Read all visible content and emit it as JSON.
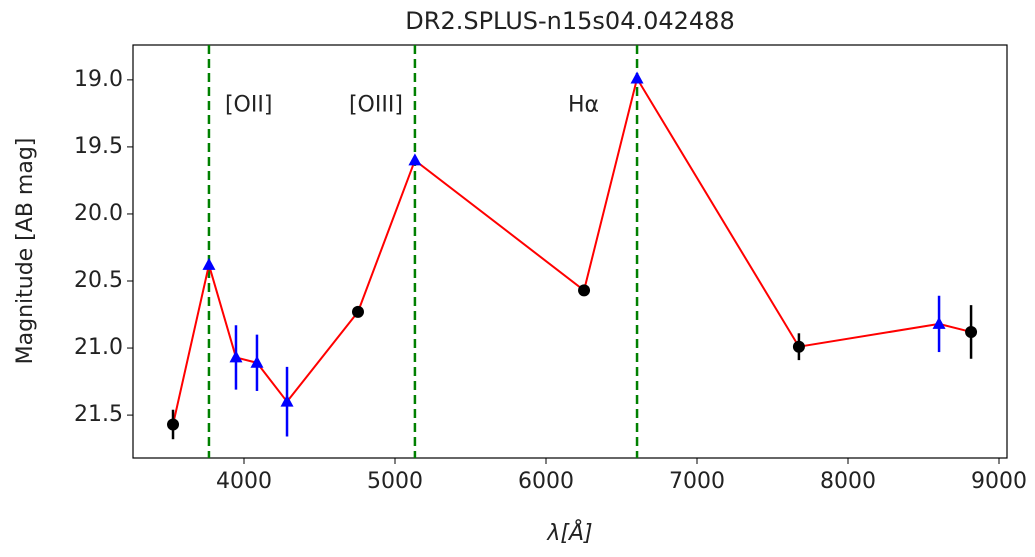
{
  "chart_data": {
    "type": "line",
    "title": "DR2.SPLUS-n15s04.042488",
    "x_label": "λ[Å]",
    "y_label": "Magnitude [AB mag]",
    "xlim": [
      3265,
      9053
    ],
    "ylim": [
      21.82,
      18.74
    ],
    "xticks": [
      4000,
      5000,
      6000,
      7000,
      8000,
      9000
    ],
    "yticks": [
      {
        "value": 19,
        "label": "19.0"
      },
      19.5,
      {
        "value": 20,
        "label": "20.0"
      },
      20.5,
      {
        "value": 21,
        "label": "21.0"
      },
      21.5
    ],
    "line_color": "#ff0000",
    "series": [
      {
        "x": [
          3530,
          3768,
          3947,
          4086,
          4285,
          4755,
          5132,
          6252,
          6603,
          7675,
          8603,
          8815
        ],
        "values": [
          21.57,
          20.38,
          21.07,
          21.11,
          21.4,
          20.73,
          19.6,
          20.57,
          18.99,
          20.99,
          20.82,
          20.88
        ],
        "errors": [
          0.11,
          0.03,
          0.24,
          0.21,
          0.26,
          0.03,
          0.03,
          0.02,
          0.03,
          0.1,
          0.21,
          0.2
        ],
        "markers": [
          "circle",
          "triangle",
          "triangle",
          "triangle",
          "triangle",
          "circle",
          "triangle",
          "circle",
          "triangle",
          "circle",
          "triangle",
          "circle"
        ],
        "marker_colors": [
          "#000000",
          "#0000ff",
          "#0000ff",
          "#0000ff",
          "#0000ff",
          "#000000",
          "#0000ff",
          "#000000",
          "#0000ff",
          "#000000",
          "#0000ff",
          "#000000"
        ]
      }
    ],
    "vlines": [
      {
        "x": 3768,
        "label": "[OII]",
        "color": "#008000"
      },
      {
        "x": 5132,
        "label": "[OIII]",
        "color": "#008000"
      },
      {
        "x": 6603,
        "label": "Hα",
        "color": "#008000"
      }
    ],
    "vline_label_y": 19.19
  }
}
